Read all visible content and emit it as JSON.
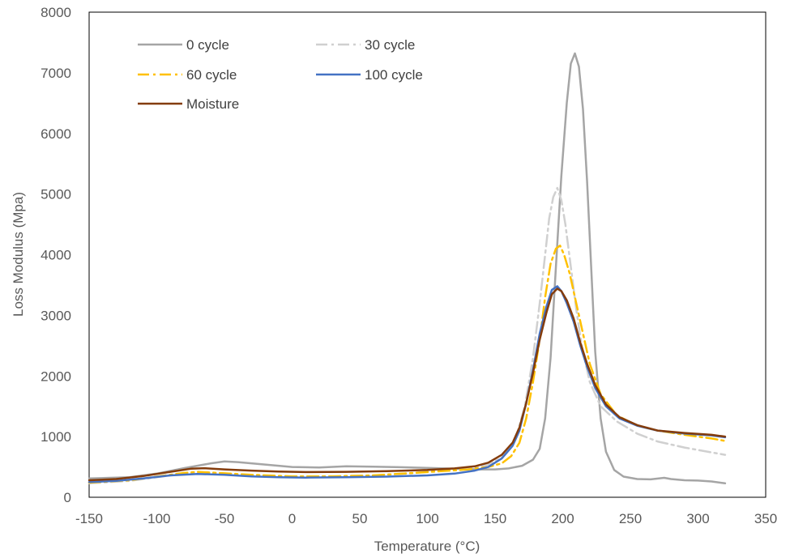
{
  "chart_data": {
    "type": "line",
    "title": "",
    "xlabel": "Temperature (°C)",
    "ylabel": "Loss Modulus (Mpa)",
    "xlim": [
      -150,
      350
    ],
    "ylim": [
      0,
      8000
    ],
    "xticks": [
      "-150",
      "-100",
      "-50",
      "0",
      "50",
      "100",
      "150",
      "200",
      "250",
      "300",
      "350"
    ],
    "yticks": [
      "0",
      "1000",
      "2000",
      "3000",
      "4000",
      "5000",
      "6000",
      "7000",
      "8000"
    ],
    "grid": false,
    "legend_position": "top-left",
    "series": [
      {
        "name": "0 cycle",
        "color": "#a5a5a5",
        "dash": "solid",
        "points": [
          [
            -150,
            310
          ],
          [
            -120,
            330
          ],
          [
            -100,
            390
          ],
          [
            -80,
            480
          ],
          [
            -60,
            560
          ],
          [
            -50,
            590
          ],
          [
            -40,
            580
          ],
          [
            -20,
            540
          ],
          [
            0,
            500
          ],
          [
            20,
            490
          ],
          [
            40,
            510
          ],
          [
            60,
            505
          ],
          [
            80,
            495
          ],
          [
            100,
            485
          ],
          [
            120,
            470
          ],
          [
            140,
            460
          ],
          [
            150,
            460
          ],
          [
            160,
            475
          ],
          [
            170,
            520
          ],
          [
            178,
            620
          ],
          [
            183,
            800
          ],
          [
            187,
            1300
          ],
          [
            191,
            2300
          ],
          [
            195,
            3800
          ],
          [
            199,
            5300
          ],
          [
            203,
            6500
          ],
          [
            206,
            7150
          ],
          [
            209,
            7320
          ],
          [
            212,
            7100
          ],
          [
            215,
            6400
          ],
          [
            218,
            5200
          ],
          [
            221,
            3800
          ],
          [
            224,
            2400
          ],
          [
            228,
            1300
          ],
          [
            232,
            750
          ],
          [
            238,
            450
          ],
          [
            245,
            340
          ],
          [
            255,
            300
          ],
          [
            265,
            295
          ],
          [
            275,
            320
          ],
          [
            280,
            300
          ],
          [
            290,
            280
          ],
          [
            300,
            275
          ],
          [
            310,
            260
          ],
          [
            320,
            230
          ]
        ]
      },
      {
        "name": "30 cycle",
        "color": "#d0d0d0",
        "dash": "dashdot",
        "points": [
          [
            -150,
            230
          ],
          [
            -120,
            270
          ],
          [
            -100,
            330
          ],
          [
            -80,
            390
          ],
          [
            -70,
            400
          ],
          [
            -50,
            380
          ],
          [
            -30,
            360
          ],
          [
            0,
            340
          ],
          [
            30,
            345
          ],
          [
            60,
            360
          ],
          [
            90,
            400
          ],
          [
            110,
            440
          ],
          [
            130,
            480
          ],
          [
            145,
            540
          ],
          [
            155,
            650
          ],
          [
            165,
            950
          ],
          [
            172,
            1500
          ],
          [
            178,
            2300
          ],
          [
            183,
            3200
          ],
          [
            187,
            4000
          ],
          [
            190,
            4600
          ],
          [
            193,
            4950
          ],
          [
            196,
            5100
          ],
          [
            199,
            4900
          ],
          [
            202,
            4500
          ],
          [
            206,
            3800
          ],
          [
            210,
            3100
          ],
          [
            214,
            2500
          ],
          [
            220,
            1900
          ],
          [
            228,
            1500
          ],
          [
            240,
            1250
          ],
          [
            255,
            1050
          ],
          [
            270,
            920
          ],
          [
            290,
            820
          ],
          [
            310,
            740
          ],
          [
            320,
            700
          ]
        ]
      },
      {
        "name": "60 cycle",
        "color": "#ffc000",
        "dash": "dashdot",
        "points": [
          [
            -150,
            240
          ],
          [
            -120,
            280
          ],
          [
            -100,
            340
          ],
          [
            -80,
            400
          ],
          [
            -70,
            420
          ],
          [
            -50,
            395
          ],
          [
            -30,
            370
          ],
          [
            0,
            345
          ],
          [
            30,
            345
          ],
          [
            60,
            360
          ],
          [
            90,
            400
          ],
          [
            110,
            430
          ],
          [
            130,
            460
          ],
          [
            145,
            500
          ],
          [
            155,
            560
          ],
          [
            162,
            680
          ],
          [
            168,
            900
          ],
          [
            173,
            1300
          ],
          [
            178,
            1900
          ],
          [
            183,
            2600
          ],
          [
            187,
            3300
          ],
          [
            191,
            3850
          ],
          [
            195,
            4100
          ],
          [
            198,
            4150
          ],
          [
            201,
            4000
          ],
          [
            205,
            3700
          ],
          [
            210,
            3200
          ],
          [
            215,
            2700
          ],
          [
            220,
            2200
          ],
          [
            228,
            1700
          ],
          [
            240,
            1350
          ],
          [
            255,
            1180
          ],
          [
            270,
            1100
          ],
          [
            290,
            1030
          ],
          [
            310,
            970
          ],
          [
            320,
            930
          ]
        ]
      },
      {
        "name": "100 cycle",
        "color": "#4472c4",
        "dash": "solid",
        "points": [
          [
            -150,
            250
          ],
          [
            -130,
            270
          ],
          [
            -110,
            310
          ],
          [
            -90,
            360
          ],
          [
            -70,
            385
          ],
          [
            -50,
            370
          ],
          [
            -30,
            345
          ],
          [
            -10,
            330
          ],
          [
            10,
            325
          ],
          [
            40,
            330
          ],
          [
            70,
            340
          ],
          [
            100,
            360
          ],
          [
            120,
            390
          ],
          [
            135,
            440
          ],
          [
            145,
            500
          ],
          [
            155,
            640
          ],
          [
            163,
            850
          ],
          [
            168,
            1100
          ],
          [
            173,
            1550
          ],
          [
            178,
            2100
          ],
          [
            183,
            2700
          ],
          [
            188,
            3150
          ],
          [
            192,
            3420
          ],
          [
            196,
            3480
          ],
          [
            199,
            3400
          ],
          [
            203,
            3200
          ],
          [
            208,
            2900
          ],
          [
            213,
            2500
          ],
          [
            218,
            2150
          ],
          [
            224,
            1800
          ],
          [
            232,
            1500
          ],
          [
            242,
            1300
          ],
          [
            255,
            1180
          ],
          [
            270,
            1100
          ],
          [
            290,
            1050
          ],
          [
            310,
            1020
          ],
          [
            320,
            990
          ]
        ]
      },
      {
        "name": "Moisture",
        "color": "#843c0c",
        "dash": "solid",
        "points": [
          [
            -150,
            280
          ],
          [
            -130,
            300
          ],
          [
            -110,
            350
          ],
          [
            -90,
            420
          ],
          [
            -75,
            470
          ],
          [
            -65,
            480
          ],
          [
            -50,
            460
          ],
          [
            -30,
            440
          ],
          [
            -10,
            425
          ],
          [
            10,
            415
          ],
          [
            40,
            420
          ],
          [
            70,
            430
          ],
          [
            100,
            450
          ],
          [
            120,
            475
          ],
          [
            135,
            510
          ],
          [
            145,
            570
          ],
          [
            155,
            700
          ],
          [
            163,
            900
          ],
          [
            168,
            1150
          ],
          [
            173,
            1550
          ],
          [
            178,
            2050
          ],
          [
            183,
            2600
          ],
          [
            188,
            3050
          ],
          [
            192,
            3350
          ],
          [
            196,
            3440
          ],
          [
            199,
            3400
          ],
          [
            203,
            3250
          ],
          [
            208,
            2950
          ],
          [
            213,
            2550
          ],
          [
            218,
            2200
          ],
          [
            224,
            1850
          ],
          [
            232,
            1530
          ],
          [
            242,
            1320
          ],
          [
            255,
            1190
          ],
          [
            270,
            1100
          ],
          [
            290,
            1060
          ],
          [
            310,
            1030
          ],
          [
            320,
            1000
          ]
        ]
      }
    ]
  }
}
